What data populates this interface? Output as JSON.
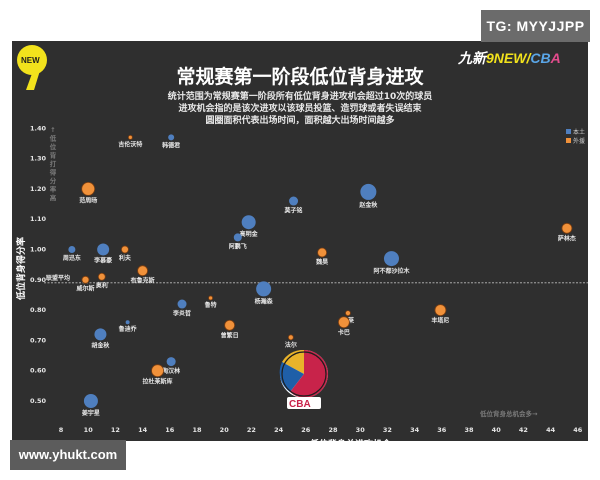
{
  "watermarks": {
    "top_right": "TG: MYYJJPP",
    "bottom_left": "www.yhukt.com"
  },
  "header": {
    "title": "常规赛第一阶段低位背身进攻",
    "subtitle_lines": [
      "统计范围为常规赛第一阶段所有低位背身进攻机会超过10次的球员",
      "进攻机会指的是该次进攻以该球员投篮、造罚球或者失误结束",
      "圆圈面积代表出场时间，面积越大出场时间越多"
    ],
    "brand": {
      "part1": "九新",
      "part2": "9NEW/",
      "part3": "CB",
      "part4": "A"
    },
    "left_logo": "NEW 9"
  },
  "colors": {
    "domestic": "#4f7fbf",
    "foreign": "#f0913a",
    "background": "#2f2f2f"
  },
  "chart_data": {
    "type": "scatter",
    "title": "常规赛第一阶段低位背身进攻",
    "xlabel": "低位背身总进攻机会",
    "ylabel": "低位背身得分率",
    "xlim": [
      8,
      46
    ],
    "ylim": [
      0.5,
      1.4
    ],
    "x_ticks": [
      8,
      10,
      12,
      14,
      16,
      18,
      20,
      22,
      24,
      26,
      28,
      30,
      32,
      34,
      36,
      38,
      40,
      42,
      44,
      46
    ],
    "y_ticks": [
      "0.50",
      "0.60",
      "0.70",
      "0.80",
      "0.90",
      "1.00",
      "1.10",
      "1.20",
      "1.30",
      "1.40"
    ],
    "reference_line": {
      "label": "联盟平均",
      "y": 0.89
    },
    "y_annotation": "↑低位背打得分率高",
    "x_annotation": "低位背身总机会多→",
    "legend": [
      {
        "name": "本土",
        "color": "#4f7fbf"
      },
      {
        "name": "外援",
        "color": "#f0913a"
      }
    ],
    "legend_position": "top-right",
    "series": [
      {
        "name": "本土",
        "points": [
          {
            "label": "韩德君",
            "x": 16.1,
            "y": 1.37,
            "size": 3
          },
          {
            "label": "赵金秋",
            "x": 30.6,
            "y": 1.19,
            "size": 8
          },
          {
            "label": "莫子铭",
            "x": 25.1,
            "y": 1.16,
            "size": 4.5
          },
          {
            "label": "高明金",
            "x": 21.8,
            "y": 1.09,
            "size": 7
          },
          {
            "label": "阿鹏飞",
            "x": 21.0,
            "y": 1.04,
            "size": 4
          },
          {
            "label": "阿不都沙拉木",
            "x": 32.3,
            "y": 0.97,
            "size": 7.5
          },
          {
            "label": "周迅东",
            "x": 8.8,
            "y": 1.0,
            "size": 3.5
          },
          {
            "label": "李慕豪",
            "x": 11.1,
            "y": 1.0,
            "size": 6
          },
          {
            "label": "杨瀚森",
            "x": 22.9,
            "y": 0.87,
            "size": 7.5
          },
          {
            "label": "李炎哲",
            "x": 16.9,
            "y": 0.82,
            "size": 4.5
          },
          {
            "label": "鲁迪乔",
            "x": 12.9,
            "y": 0.76,
            "size": 2
          },
          {
            "label": "胡金秋",
            "x": 10.9,
            "y": 0.72,
            "size": 6
          },
          {
            "label": "陶汉林",
            "x": 16.1,
            "y": 0.63,
            "size": 4.5
          },
          {
            "label": "姜宇星",
            "x": 10.2,
            "y": 0.5,
            "size": 7
          }
        ]
      },
      {
        "name": "外援",
        "points": [
          {
            "label": "吉伦沃特",
            "x": 13.1,
            "y": 1.37,
            "size": 2
          },
          {
            "label": "范周旸",
            "x": 10.0,
            "y": 1.2,
            "size": 6.5
          },
          {
            "label": "萨林杰",
            "x": 45.2,
            "y": 1.07,
            "size": 5
          },
          {
            "label": "魏昊",
            "x": 27.2,
            "y": 0.99,
            "size": 4.5
          },
          {
            "label": "利夫",
            "x": 12.7,
            "y": 1.0,
            "size": 3.5
          },
          {
            "label": "布鲁克斯",
            "x": 14.0,
            "y": 0.93,
            "size": 5
          },
          {
            "label": "威尔斯",
            "x": 9.8,
            "y": 0.9,
            "size": 3.5
          },
          {
            "label": "奥利",
            "x": 11.0,
            "y": 0.91,
            "size": 3.5
          },
          {
            "label": "鲁特",
            "x": 19.0,
            "y": 0.84,
            "size": 2
          },
          {
            "label": "曾繁日",
            "x": 20.4,
            "y": 0.75,
            "size": 5
          },
          {
            "label": "冯莱",
            "x": 29.1,
            "y": 0.79,
            "size": 2.5
          },
          {
            "label": "卡巴",
            "x": 28.8,
            "y": 0.76,
            "size": 5.5
          },
          {
            "label": "丰塔尼",
            "x": 35.9,
            "y": 0.8,
            "size": 5.5
          },
          {
            "label": "法尔",
            "x": 24.9,
            "y": 0.71,
            "size": 2.5
          },
          {
            "label": "拉杜莱斯库",
            "x": 15.1,
            "y": 0.6,
            "size": 6
          }
        ]
      }
    ]
  }
}
